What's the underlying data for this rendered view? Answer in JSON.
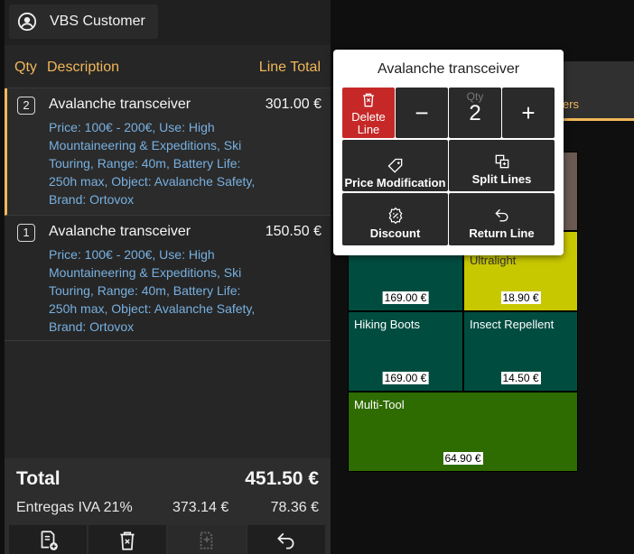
{
  "customer": {
    "name": "VBS Customer",
    "icon": "user-circle-icon"
  },
  "columns": {
    "qty": "Qty",
    "description": "Description",
    "line_total": "Line Total"
  },
  "lines": [
    {
      "qty": "2",
      "title": "Avalanche transceiver",
      "amount": "301.00 €",
      "detail": "Price: 100€ - 200€, Use: High Mountaineering & Expeditions, Ski Touring, Range: 40m, Battery Life: 250h max, Object: Avalanche Safety, Brand: Ortovox",
      "selected": true
    },
    {
      "qty": "1",
      "title": "Avalanche transceiver",
      "amount": "150.50 €",
      "detail": "Price: 100€ - 200€, Use: High Mountaineering & Expeditions, Ski Touring, Range: 40m, Battery Life: 250h max, Object: Avalanche Safety, Brand: Ortovox",
      "selected": false
    }
  ],
  "totals": {
    "label": "Total",
    "value": "451.50 €",
    "tax_label": "Entregas IVA 21%",
    "tax_base": "373.14 €",
    "tax_amount": "78.36 €"
  },
  "bottom_bar": [
    "receipt-add-icon",
    "trash-icon",
    "split-icon",
    "return-icon"
  ],
  "category_tab": {
    "label": "lers"
  },
  "products": [
    {
      "name": "",
      "price": "",
      "color": "#6a5a52"
    },
    {
      "name": "",
      "price": "169.00 €",
      "color": "#004d40"
    },
    {
      "name": "Ultralight",
      "price": "18.90 €",
      "color": "#c8c800"
    },
    {
      "name": "Hiking Boots",
      "price": "169.00 €",
      "color": "#004d40"
    },
    {
      "name": "Insect Repellent",
      "price": "14.50 €",
      "color": "#004d40"
    },
    {
      "name": "Multi-Tool",
      "price": "64.90 €",
      "color": "#2e6b00"
    }
  ],
  "popup": {
    "title": "Avalanche transceiver",
    "delete_label": "Delete Line",
    "qty_label": "Qty",
    "qty_value": "2",
    "minus": "−",
    "plus": "+",
    "price_mod_label": "Price Modification",
    "split_label": "Split Lines",
    "discount_label": "Discount",
    "return_label": "Return Line"
  },
  "colors": {
    "accent": "#f0b75a",
    "detail_text": "#78b0e0",
    "delete": "#c62828"
  }
}
